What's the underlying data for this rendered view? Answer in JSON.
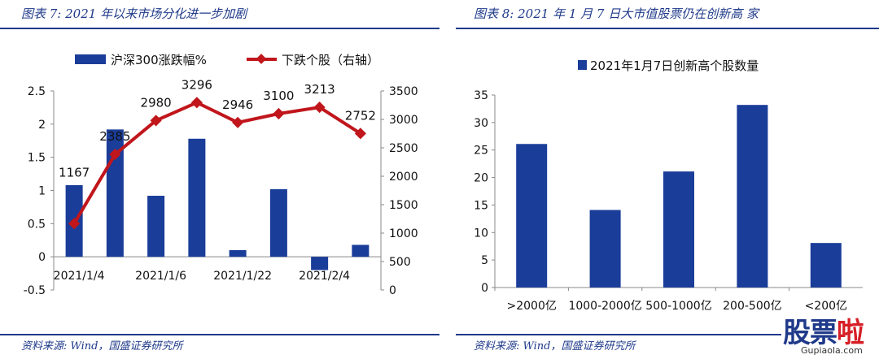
{
  "left": {
    "title": "图表 7:  2021 年以来市场分化进一步加剧",
    "source": "资料来源:  Wind，国盛证券研究所"
  },
  "right": {
    "title": "图表 8:  2021 年 1 月 7 日大市值股票仍在创新高 家",
    "source": "资料来源:  Wind，国盛证券研究所"
  },
  "watermark": {
    "big_a": "股票",
    "big_b": "啦",
    "small": "Gupiaola.com"
  },
  "colors": {
    "navy": "#1a3d99",
    "red": "#c0161c",
    "text": "#111111",
    "axis": "#888888"
  },
  "chart_data": [
    {
      "type": "bar+line",
      "title": "",
      "legend": [
        "沪深300涨跌幅%",
        "下跌个股（右轴）"
      ],
      "legend_placement": "top",
      "x_tick_labels": [
        "2021/1/4",
        "2021/1/6",
        "2021/1/22",
        "2021/2/4"
      ],
      "series": [
        {
          "name": "沪深300涨跌幅%",
          "type": "bar",
          "axis": "left",
          "values": [
            1.08,
            1.92,
            0.92,
            1.78,
            0.1,
            1.02,
            -0.2,
            0.18
          ]
        },
        {
          "name": "下跌个股（右轴）",
          "type": "line",
          "axis": "right",
          "values": [
            1167,
            2385,
            2980,
            3296,
            2946,
            3100,
            3213,
            2752
          ],
          "labels": [
            "1167",
            "2385",
            "2980",
            "3296",
            "2946",
            "3100",
            "3213",
            "2752"
          ]
        }
      ],
      "y_left": {
        "range": [
          -0.5,
          2.5
        ],
        "ticks": [
          "-0.5",
          "0",
          "0.5",
          "1",
          "1.5",
          "2",
          "2.5"
        ]
      },
      "y_right": {
        "range": [
          0,
          3500
        ],
        "ticks": [
          "0",
          "500",
          "1000",
          "1500",
          "2000",
          "2500",
          "3000",
          "3500"
        ]
      },
      "grid": false
    },
    {
      "type": "bar",
      "title": "",
      "legend": [
        "2021年1月7日创新高个股数量"
      ],
      "legend_placement": "top",
      "categories": [
        ">2000亿",
        "1000-2000亿",
        "500-1000亿",
        "200-500亿",
        "<200亿"
      ],
      "values": [
        26.1,
        14.1,
        21.1,
        33.2,
        8.1
      ],
      "y": {
        "range": [
          0,
          35
        ],
        "ticks": [
          "0",
          "5",
          "10",
          "15",
          "20",
          "25",
          "30",
          "35"
        ]
      },
      "grid": false
    }
  ]
}
